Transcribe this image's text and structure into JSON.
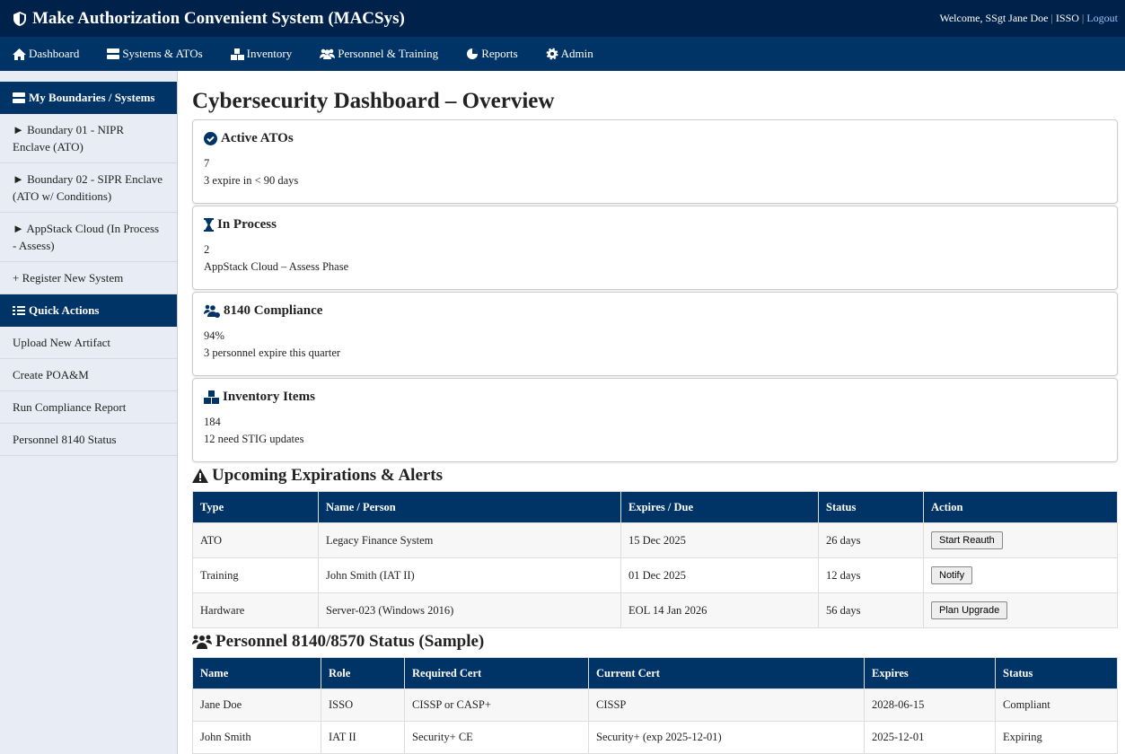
{
  "header": {
    "title": "Make Authorization Convenient System (MACSys)",
    "welcome": "Welcome, SSgt Jane Doe",
    "role": "ISSO",
    "logout": "Logout"
  },
  "nav": [
    {
      "label": "Dashboard",
      "icon": "home-icon"
    },
    {
      "label": "Systems & ATOs",
      "icon": "server-icon"
    },
    {
      "label": "Inventory",
      "icon": "boxes-icon"
    },
    {
      "label": "Personnel & Training",
      "icon": "users-icon"
    },
    {
      "label": "Reports",
      "icon": "pie-chart-icon"
    },
    {
      "label": "Admin",
      "icon": "gear-icon"
    }
  ],
  "sidebar": {
    "boundaries_title": "My Boundaries / Systems",
    "boundaries": [
      "► Boundary 01 - NIPR Enclave (ATO)",
      "► Boundary 02 - SIPR Enclave (ATO w/ Conditions)",
      "► AppStack Cloud (In Process - Assess)",
      "+ Register New System"
    ],
    "quick_title": "Quick Actions",
    "quick": [
      "Upload New Artifact",
      "Create POA&M",
      "Run Compliance Report",
      "Personnel 8140 Status"
    ]
  },
  "main": {
    "title": "Cybersecurity Dashboard – Overview",
    "cards": [
      {
        "title": "Active ATOs",
        "value": "7",
        "note": "3 expire in < 90 days"
      },
      {
        "title": "In Process",
        "value": "2",
        "note": "AppStack Cloud – Assess Phase"
      },
      {
        "title": "8140 Compliance",
        "value": "94%",
        "note": "3 personnel expire this quarter"
      },
      {
        "title": "Inventory Items",
        "value": "184",
        "note": "12 need STIG updates"
      }
    ],
    "alerts": {
      "title": "Upcoming Expirations & Alerts",
      "headers": [
        "Type",
        "Name / Person",
        "Expires / Due",
        "Status",
        "Action"
      ],
      "rows": [
        [
          "ATO",
          "Legacy Finance System",
          "15 Dec 2025",
          "26 days",
          "Start Reauth"
        ],
        [
          "Training",
          "John Smith (IAT II)",
          "01 Dec 2025",
          "12 days",
          "Notify"
        ],
        [
          "Hardware",
          "Server-023 (Windows 2016)",
          "EOL 14 Jan 2026",
          "56 days",
          "Plan Upgrade"
        ]
      ]
    },
    "personnel": {
      "title": "Personnel 8140/8570 Status (Sample)",
      "headers": [
        "Name",
        "Role",
        "Required Cert",
        "Current Cert",
        "Expires",
        "Status"
      ],
      "rows": [
        [
          "Jane Doe",
          "ISSO",
          "CISSP or CASP+",
          "CISSP",
          "2028-06-15",
          "Compliant"
        ],
        [
          "John Smith",
          "IAT II",
          "Security+ CE",
          "Security+ (exp 2025-12-01)",
          "2025-12-01",
          "Expiring"
        ]
      ]
    }
  },
  "colors": {
    "header": "#00224a",
    "nav": "#003366",
    "sidebar": "#e8edf5"
  }
}
